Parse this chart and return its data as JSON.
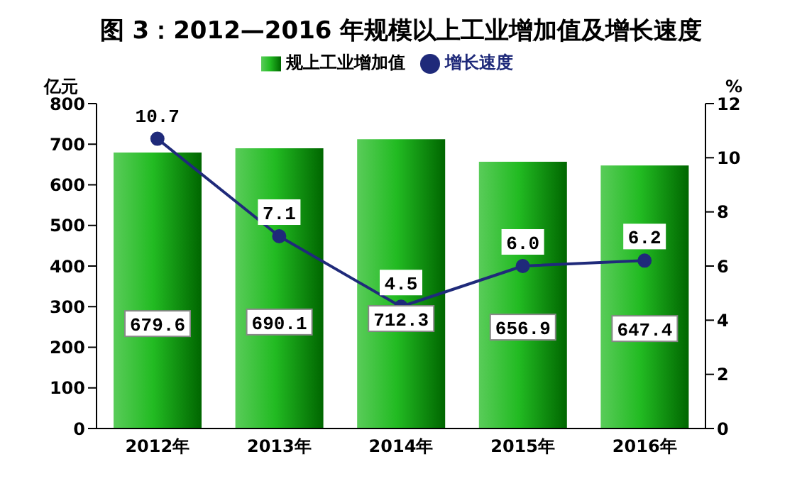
{
  "chart_data": {
    "type": "bar",
    "title": "图 3：2012—2016 年规模以上工业增加值及增长速度",
    "categories": [
      "2012年",
      "2013年",
      "2014年",
      "2015年",
      "2016年"
    ],
    "series": [
      {
        "name": "规上工业增加值",
        "color": "#22bb22",
        "values": [
          679.6,
          690.1,
          712.3,
          656.9,
          647.4
        ],
        "value_labels": [
          "679.6",
          "690.1",
          "712.3",
          "656.9",
          "647.4"
        ]
      },
      {
        "name": "增长速度",
        "type": "line",
        "axis": "y2",
        "color": "#1f2a7a",
        "values": [
          10.7,
          7.1,
          4.5,
          6.0,
          6.2
        ],
        "value_labels": [
          "10.7",
          "7.1",
          "4.5",
          "6.0",
          "6.2"
        ]
      }
    ],
    "ylabel": "亿元",
    "y2label": "%",
    "ylim": [
      0,
      800
    ],
    "yticks": [
      0,
      100,
      200,
      300,
      400,
      500,
      600,
      700,
      800
    ],
    "y2lim": [
      0,
      12
    ],
    "y2ticks": [
      0,
      2,
      4,
      6,
      8,
      10,
      12
    ],
    "legend": "top",
    "marker": "circle"
  }
}
